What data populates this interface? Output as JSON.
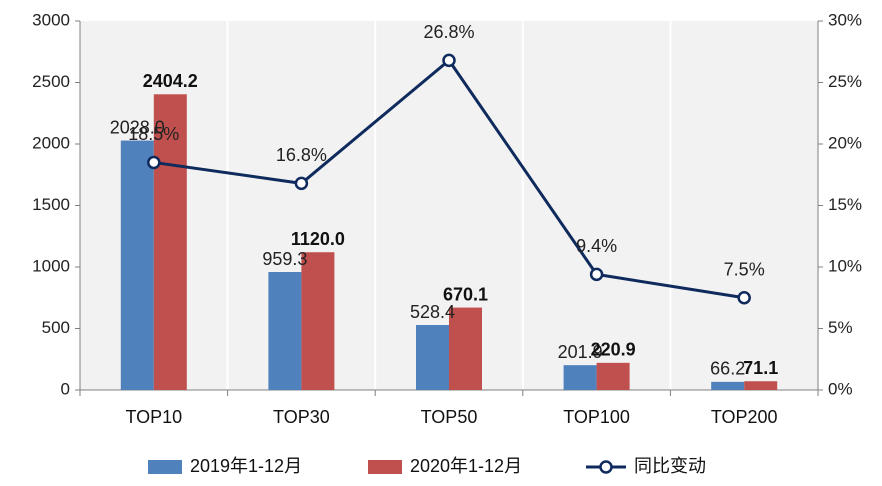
{
  "chart_data": {
    "type": "bar",
    "combo": "bar+line",
    "categories": [
      "TOP10",
      "TOP30",
      "TOP50",
      "TOP100",
      "TOP200"
    ],
    "series": [
      {
        "name": "2019年1-12月",
        "type": "bar",
        "axis": "left",
        "color": "#4F81BD",
        "values": [
          2028.0,
          959.3,
          528.4,
          201.9,
          66.2
        ],
        "labels": [
          "2028.0",
          "959.3",
          "528.4",
          "201.9",
          "66.2"
        ]
      },
      {
        "name": "2020年1-12月",
        "type": "bar",
        "axis": "left",
        "color": "#C0504D",
        "values": [
          2404.2,
          1120.0,
          670.1,
          220.9,
          71.1
        ],
        "labels": [
          "2404.2",
          "1120.0",
          "670.1",
          "220.9",
          "71.1"
        ]
      },
      {
        "name": "同比变动",
        "type": "line",
        "axis": "right",
        "color": "#0F2A5C",
        "values": [
          18.5,
          16.8,
          26.8,
          9.4,
          7.5
        ],
        "labels": [
          "18.5%",
          "16.8%",
          "26.8%",
          "9.4%",
          "7.5%"
        ]
      }
    ],
    "y_left": {
      "min": 0,
      "max": 3000,
      "ticks": [
        "0",
        "500",
        "1000",
        "1500",
        "2000",
        "2500",
        "3000"
      ]
    },
    "y_right": {
      "min": 0,
      "max": 30,
      "ticks": [
        "0%",
        "5%",
        "10%",
        "15%",
        "20%",
        "25%",
        "30%"
      ]
    },
    "title": "",
    "xlabel": "",
    "ylabel": "",
    "grid": false,
    "plot_background": "#F2F2F2",
    "legend_position": "bottom"
  }
}
